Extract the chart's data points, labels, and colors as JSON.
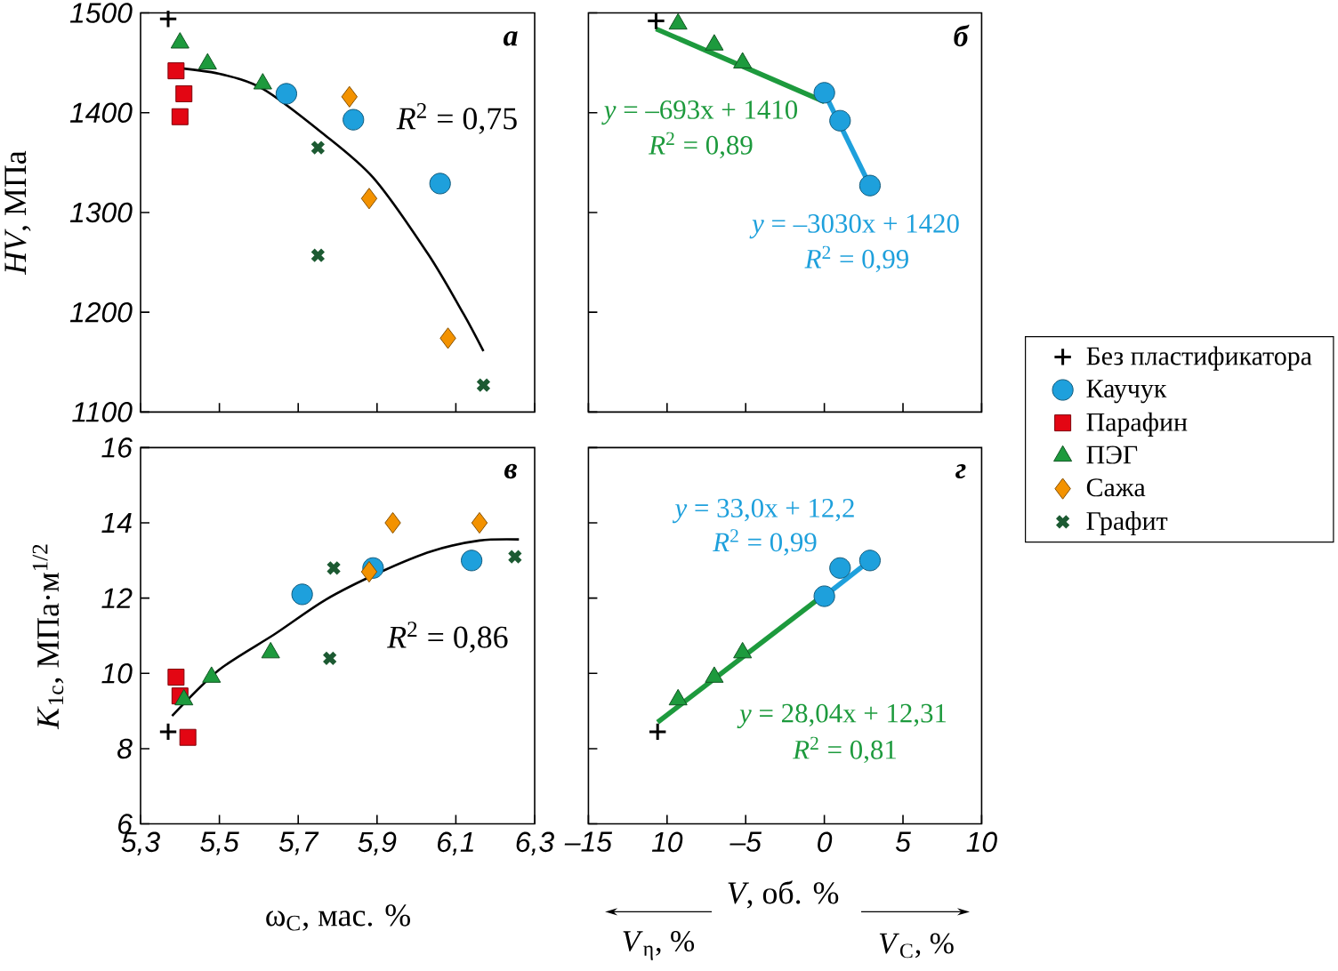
{
  "chart_data": [
    {
      "type": "scatter",
      "title": "а",
      "ylabel": "*HV*, МПа",
      "xlim": [
        5.3,
        6.3
      ],
      "xticks": [
        5.3,
        5.5,
        5.7,
        5.9,
        6.1,
        6.3
      ],
      "ylim": [
        1100,
        1500
      ],
      "yticks": [
        1100,
        1200,
        1300,
        1400,
        1500
      ],
      "tick_labels": "y",
      "legend": "right",
      "annotations": [
        "*R*$^{2}$ = 0,75"
      ],
      "series": [
        {
          "name": "Без пластификатора",
          "color": "#000000",
          "marker": "plus",
          "x": [
            5.37
          ],
          "values": [
            1494
          ]
        },
        {
          "name": "Каучук",
          "color": "#1ea0dc",
          "marker": "circle",
          "x": [
            5.67,
            5.84,
            6.06
          ],
          "values": [
            1419,
            1393,
            1329
          ]
        },
        {
          "name": "Парафин",
          "color": "#e30613",
          "marker": "square",
          "x": [
            5.39,
            5.41,
            5.4
          ],
          "values": [
            1442,
            1419,
            1396
          ]
        },
        {
          "name": "ПЭГ",
          "color": "#1d9a3d",
          "marker": "triangle",
          "x": [
            5.4,
            5.47,
            5.61
          ],
          "values": [
            1470,
            1449,
            1429
          ]
        },
        {
          "name": "Сажа",
          "color": "#f39200",
          "marker": "diamond",
          "x": [
            5.83,
            5.88,
            6.08
          ],
          "values": [
            1416,
            1314,
            1174
          ]
        },
        {
          "name": "Графит",
          "color": "#1c5a32",
          "marker": "cross",
          "x": [
            5.75,
            5.75,
            6.17
          ],
          "values": [
            1365,
            1257,
            1127
          ]
        },
        {
          "type": "line",
          "color": "#000000",
          "x": [
            5.37,
            5.5,
            5.61,
            5.76,
            5.89,
            6.03,
            6.12,
            6.17
          ],
          "values": [
            1446,
            1439,
            1424,
            1380,
            1335,
            1258,
            1198,
            1161
          ]
        }
      ]
    },
    {
      "type": "scatter",
      "title": "б",
      "xlim": [
        -15,
        10
      ],
      "xticks": [
        -15,
        -10,
        -5,
        0,
        5,
        10
      ],
      "ylim": [
        1100,
        1500
      ],
      "yticks": [
        1100,
        1200,
        1300,
        1400,
        1500
      ],
      "tick_labels": false,
      "annotations": [
        "*y* = –693x + 1410",
        "*R*$^{2}$ = 0,89",
        "*y* = –3030x + 1420",
        "*R*$^{2}$ = 0,99"
      ],
      "series": [
        {
          "color": "#000000",
          "marker": "plus",
          "x": [
            -10.7
          ],
          "values": [
            1492
          ]
        },
        {
          "color": "#1ea0dc",
          "marker": "circle",
          "x": [
            0,
            1.0,
            2.9
          ],
          "values": [
            1420,
            1392,
            1327
          ]
        },
        {
          "color": "#1d9a3d",
          "marker": "triangle",
          "x": [
            -9.3,
            -7.0,
            -5.2
          ],
          "values": [
            1489,
            1468,
            1450
          ]
        },
        {
          "type": "line",
          "color": "#1d9a3d",
          "x": [
            -10.7,
            0
          ],
          "values": [
            1484,
            1411
          ]
        },
        {
          "type": "line",
          "color": "#1ea0dc",
          "x": [
            0,
            2.9
          ],
          "values": [
            1420,
            1327
          ]
        }
      ]
    },
    {
      "type": "scatter",
      "title": "в",
      "xlabel": "ω$_{C}$, мас. %",
      "ylabel": "*K*$_{1c}$, МПа·м$^{1/2}$",
      "xlim": [
        5.3,
        6.3
      ],
      "xticks": [
        {
          "value": 5.3,
          "label": "5,3"
        },
        {
          "value": 5.5,
          "label": "5,5"
        },
        {
          "value": 5.7,
          "label": "5,7"
        },
        {
          "value": 5.9,
          "label": "5,9"
        },
        {
          "value": 6.1,
          "label": "6,1"
        },
        {
          "value": 6.3,
          "label": "6,3"
        }
      ],
      "ylim": [
        6,
        16
      ],
      "yticks": [
        6,
        8,
        10,
        12,
        14,
        16
      ],
      "annotations": [
        "*R*$^{2}$ = 0,86"
      ],
      "series": [
        {
          "color": "#000000",
          "marker": "plus",
          "x": [
            5.37
          ],
          "values": [
            8.45
          ]
        },
        {
          "color": "#1ea0dc",
          "marker": "circle",
          "x": [
            5.71,
            5.89,
            6.14
          ],
          "values": [
            12.1,
            12.8,
            13.0
          ]
        },
        {
          "color": "#e30613",
          "marker": "square",
          "x": [
            5.39,
            5.4,
            5.42
          ],
          "values": [
            9.9,
            9.4,
            8.3
          ]
        },
        {
          "color": "#1d9a3d",
          "marker": "triangle",
          "x": [
            5.41,
            5.48,
            5.63
          ],
          "values": [
            9.3,
            9.9,
            10.55
          ]
        },
        {
          "color": "#f39200",
          "marker": "diamond",
          "x": [
            5.94,
            5.88,
            6.16
          ],
          "values": [
            14.0,
            12.7,
            14.0
          ]
        },
        {
          "color": "#1c5a32",
          "marker": "cross",
          "x": [
            5.79,
            5.78,
            6.25
          ],
          "values": [
            12.8,
            10.4,
            13.1
          ]
        },
        {
          "type": "line",
          "color": "#000000",
          "x": [
            5.38,
            5.5,
            5.64,
            5.77,
            5.91,
            6.04,
            6.16,
            6.26
          ],
          "values": [
            8.87,
            10.1,
            11.04,
            11.96,
            12.7,
            13.25,
            13.53,
            13.56
          ]
        }
      ]
    },
    {
      "type": "scatter",
      "title": "г",
      "xlabel": "*V*, об. %",
      "xlim": [
        -15,
        10
      ],
      "xticks": [
        {
          "value": -15,
          "label": "–15"
        },
        {
          "value": -10,
          "label": "10"
        },
        {
          "value": -5,
          "label": "–5"
        },
        0,
        5,
        10
      ],
      "ylim": [
        6,
        16
      ],
      "yticks": [
        6,
        8,
        10,
        12,
        14,
        16
      ],
      "tick_labels": "x",
      "annotations": [
        "*y* = 33,0x + 12,2",
        "*R*$^{2}$ = 0,99",
        "*y* = 28,04x + 12,31",
        "*R*$^{2}$ = 0,81",
        "*V*$_{η}$, %",
        "*V*$_{C}$, %"
      ],
      "series": [
        {
          "color": "#000000",
          "marker": "plus",
          "x": [
            -10.6
          ],
          "values": [
            8.45
          ]
        },
        {
          "color": "#1ea0dc",
          "marker": "circle",
          "x": [
            0,
            1.0,
            2.9
          ],
          "values": [
            12.05,
            12.8,
            13.0
          ]
        },
        {
          "color": "#1d9a3d",
          "marker": "triangle",
          "x": [
            -9.3,
            -7.0,
            -5.2
          ],
          "values": [
            9.3,
            9.9,
            10.55
          ]
        },
        {
          "type": "line",
          "color": "#1d9a3d",
          "x": [
            -10.6,
            0
          ],
          "values": [
            8.7,
            12.1
          ]
        },
        {
          "type": "line",
          "color": "#1ea0dc",
          "x": [
            0,
            2.9
          ],
          "values": [
            12.05,
            13.0
          ]
        }
      ]
    }
  ]
}
